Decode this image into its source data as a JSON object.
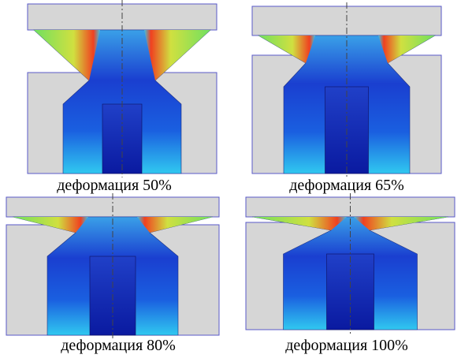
{
  "panels": [
    {
      "caption": "деформация 50%"
    },
    {
      "caption": "деформация 65%"
    },
    {
      "caption": "деформация 80%"
    },
    {
      "caption": "деформация 100%"
    }
  ]
}
